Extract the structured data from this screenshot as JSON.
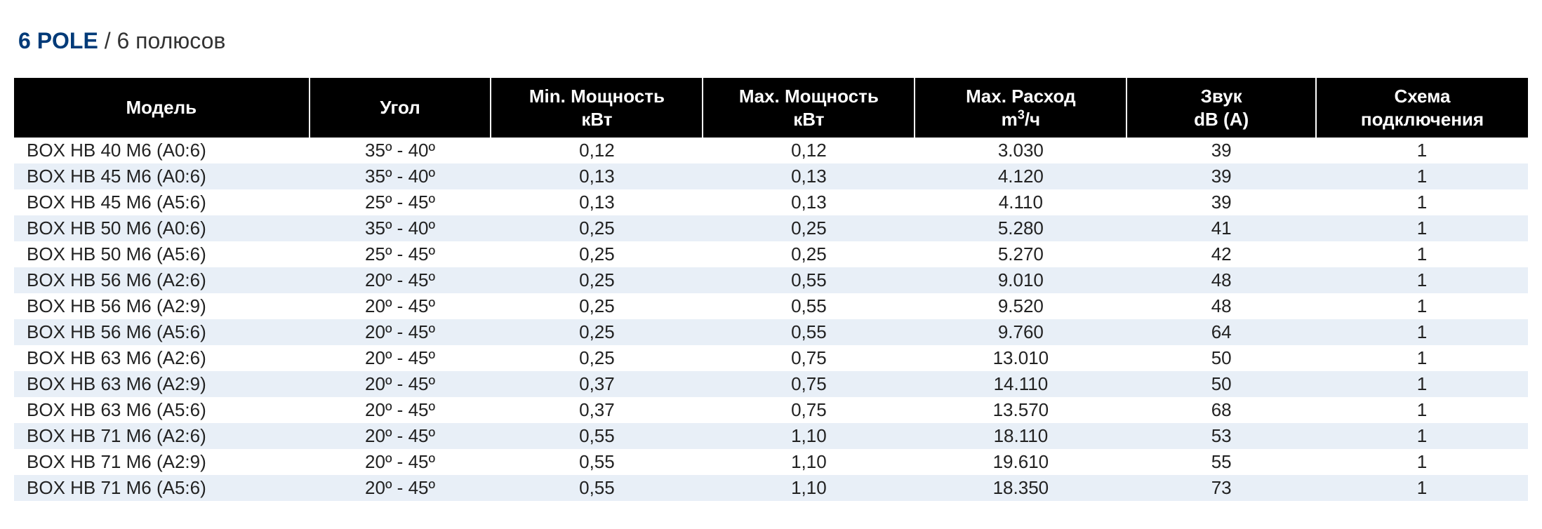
{
  "title": {
    "bold": "6 POLE",
    "rest": " / 6 полюсов"
  },
  "table": {
    "title_fontsize": 32,
    "title_color_bold": "#003a78",
    "title_color_rest": "#333333",
    "header_bg": "#000000",
    "header_text_color": "#ffffff",
    "header_fontsize": 26,
    "body_fontsize": 26,
    "row_odd_bg": "#ffffff",
    "row_even_bg": "#e8eff7",
    "border_between_headers": "#ffffff",
    "columns": [
      {
        "key": "model",
        "label_html": "Модель",
        "width_pct": 19.5,
        "align": "left"
      },
      {
        "key": "angle",
        "label_html": "Угол",
        "width_pct": 12.0,
        "align": "center"
      },
      {
        "key": "minp",
        "label_html": "Min. Мощность<br>кВт",
        "width_pct": 14.0,
        "align": "center"
      },
      {
        "key": "maxp",
        "label_html": "Max. Мощность<br>кВт",
        "width_pct": 14.0,
        "align": "center"
      },
      {
        "key": "flow",
        "label_html": "Max. Расход<br>m<span class=\"sup\">3</span>/ч",
        "width_pct": 14.0,
        "align": "center"
      },
      {
        "key": "sound",
        "label_html": "Звук<br>dB (A)",
        "width_pct": 12.5,
        "align": "center"
      },
      {
        "key": "scheme",
        "label_html": "Схема<br>подключения",
        "width_pct": 14.0,
        "align": "center"
      }
    ],
    "rows": [
      {
        "model": "BOX HB 40 M6 (A0:6)",
        "angle": "35º - 40º",
        "minp": "0,12",
        "maxp": "0,12",
        "flow": "3.030",
        "sound": "39",
        "scheme": "1"
      },
      {
        "model": "BOX HB 45 M6 (A0:6)",
        "angle": "35º - 40º",
        "minp": "0,13",
        "maxp": "0,13",
        "flow": "4.120",
        "sound": "39",
        "scheme": "1"
      },
      {
        "model": "BOX HB 45 M6 (A5:6)",
        "angle": "25º - 45º",
        "minp": "0,13",
        "maxp": "0,13",
        "flow": "4.110",
        "sound": "39",
        "scheme": "1"
      },
      {
        "model": "BOX HB 50 M6 (A0:6)",
        "angle": "35º - 40º",
        "minp": "0,25",
        "maxp": "0,25",
        "flow": "5.280",
        "sound": "41",
        "scheme": "1"
      },
      {
        "model": "BOX HB 50 M6 (A5:6)",
        "angle": "25º - 45º",
        "minp": "0,25",
        "maxp": "0,25",
        "flow": "5.270",
        "sound": "42",
        "scheme": "1"
      },
      {
        "model": "BOX HB 56 M6 (A2:6)",
        "angle": "20º - 45º",
        "minp": "0,25",
        "maxp": "0,55",
        "flow": "9.010",
        "sound": "48",
        "scheme": "1"
      },
      {
        "model": "BOX HB 56 M6 (A2:9)",
        "angle": "20º - 45º",
        "minp": "0,25",
        "maxp": "0,55",
        "flow": "9.520",
        "sound": "48",
        "scheme": "1"
      },
      {
        "model": "BOX HB 56 M6 (A5:6)",
        "angle": "20º - 45º",
        "minp": "0,25",
        "maxp": "0,55",
        "flow": "9.760",
        "sound": "64",
        "scheme": "1"
      },
      {
        "model": "BOX HB 63 M6 (A2:6)",
        "angle": "20º - 45º",
        "minp": "0,25",
        "maxp": "0,75",
        "flow": "13.010",
        "sound": "50",
        "scheme": "1"
      },
      {
        "model": "BOX HB 63 M6 (A2:9)",
        "angle": "20º - 45º",
        "minp": "0,37",
        "maxp": "0,75",
        "flow": "14.110",
        "sound": "50",
        "scheme": "1"
      },
      {
        "model": "BOX HB 63 M6 (A5:6)",
        "angle": "20º - 45º",
        "minp": "0,37",
        "maxp": "0,75",
        "flow": "13.570",
        "sound": "68",
        "scheme": "1"
      },
      {
        "model": "BOX HB 71 M6 (A2:6)",
        "angle": "20º - 45º",
        "minp": "0,55",
        "maxp": "1,10",
        "flow": "18.110",
        "sound": "53",
        "scheme": "1"
      },
      {
        "model": "BOX HB 71 M6 (A2:9)",
        "angle": "20º - 45º",
        "minp": "0,55",
        "maxp": "1,10",
        "flow": "19.610",
        "sound": "55",
        "scheme": "1"
      },
      {
        "model": "BOX HB 71 M6 (A5:6)",
        "angle": "20º - 45º",
        "minp": "0,55",
        "maxp": "1,10",
        "flow": "18.350",
        "sound": "73",
        "scheme": "1"
      }
    ]
  }
}
